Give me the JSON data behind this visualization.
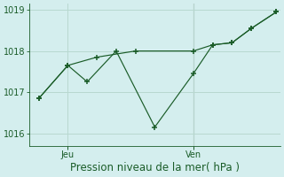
{
  "xlabel": "Pression niveau de la mer( hPa )",
  "bg_color": "#d4eeee",
  "grid_color": "#b8d8d0",
  "line_color": "#1a5c28",
  "vline_color": "#888888",
  "ylim": [
    1015.7,
    1019.15
  ],
  "yticks": [
    1016,
    1017,
    1018,
    1019
  ],
  "xlim": [
    0,
    13
  ],
  "x_jeu": 2.0,
  "x_ven": 8.5,
  "vline_x": 8.5,
  "line1_x": [
    0.5,
    2.0,
    3.0,
    4.5,
    6.5,
    8.5,
    9.5,
    10.5,
    11.5,
    12.8
  ],
  "line1_y": [
    1016.85,
    1017.65,
    1017.25,
    1018.0,
    1016.15,
    1017.45,
    1018.15,
    1018.2,
    1018.55,
    1018.95
  ],
  "line2_x": [
    0.5,
    2.0,
    3.5,
    5.5,
    8.5,
    9.5,
    10.5,
    11.5,
    12.8
  ],
  "line2_y": [
    1016.85,
    1017.65,
    1017.85,
    1018.0,
    1018.0,
    1018.15,
    1018.2,
    1018.55,
    1018.95
  ],
  "font_size_xlabel": 8.5,
  "tick_fontsize": 7.0
}
